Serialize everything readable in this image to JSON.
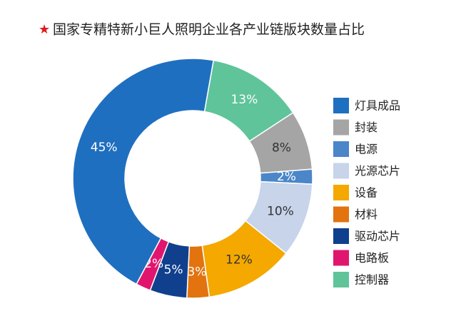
{
  "chart_data": {
    "type": "donut",
    "title": "国家专精特新小巨人照明企业各产业链版块数量占比",
    "categories": [
      "灯具成品",
      "封装",
      "电源",
      "光源芯片",
      "设备",
      "材料",
      "驱动芯片",
      "电路板",
      "控制器"
    ],
    "values": [
      45,
      8,
      2,
      10,
      12,
      3,
      5,
      2,
      13
    ],
    "value_labels": [
      "45%",
      "8%",
      "2%",
      "10%",
      "12%",
      "3%",
      "5%",
      "2%",
      "13%"
    ],
    "colors": [
      "#1f6fc0",
      "#a5a5a5",
      "#4a86c8",
      "#c7d4ea",
      "#f4a800",
      "#e2730f",
      "#103f8e",
      "#e0166e",
      "#5fc49a"
    ],
    "legend": "right"
  }
}
